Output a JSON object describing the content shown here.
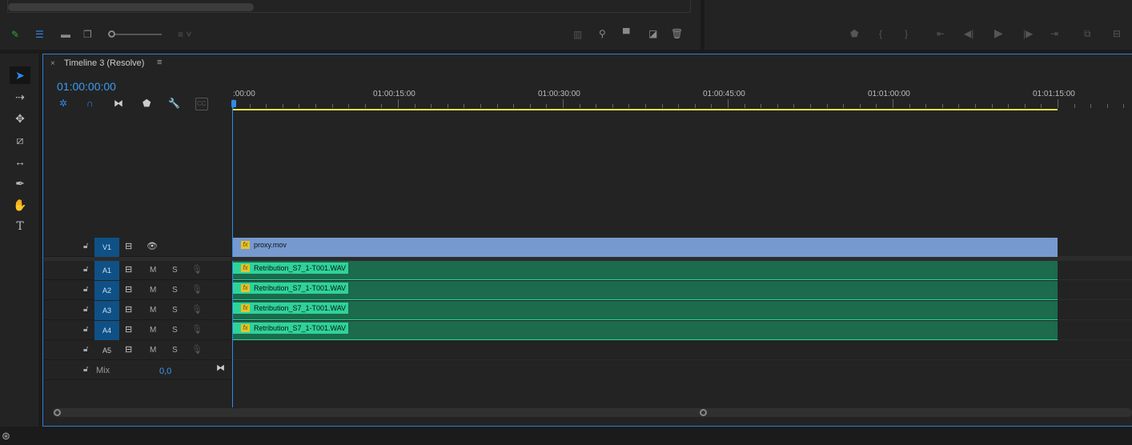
{
  "timeline": {
    "tab_title": "Timeline 3 (Resolve)",
    "timecode": "01:00:00:00",
    "ruler_labels": [
      ":00:00",
      "01:00:15:00",
      "01:00:30:00",
      "01:00:45:00",
      "01:01:00:00",
      "01:01:15:00"
    ],
    "in_out_end_seconds": 75,
    "tracks": [
      {
        "name": "V1",
        "targeted": true,
        "type": "video"
      },
      {
        "name": "A1",
        "targeted": true,
        "type": "audio"
      },
      {
        "name": "A2",
        "targeted": true,
        "type": "audio"
      },
      {
        "name": "A3",
        "targeted": true,
        "type": "audio"
      },
      {
        "name": "A4",
        "targeted": true,
        "type": "audio"
      },
      {
        "name": "A5",
        "targeted": false,
        "type": "audio"
      }
    ],
    "mute_label": "M",
    "solo_label": "S",
    "mix": {
      "label": "Mix",
      "value": "0,0"
    },
    "clips": [
      {
        "track": "V1",
        "name": "proxy.mov",
        "color": "#7699cf"
      },
      {
        "track": "A1",
        "name": "Retribution_S7_1-T001.WAV",
        "color": "#1b6b4c"
      },
      {
        "track": "A2",
        "name": "Retribution_S7_1-T001.WAV",
        "color": "#1b6b4c"
      },
      {
        "track": "A3",
        "name": "Retribution_S7_1-T001.WAV",
        "color": "#1b6b4c"
      },
      {
        "track": "A4",
        "name": "Retribution_S7_1-T001.WAV",
        "color": "#1b6b4c"
      }
    ],
    "fx_label": "fx"
  },
  "colors": {
    "accent": "#2d8ceb",
    "work_area": "#e8e04a",
    "video_clip": "#7699cf",
    "audio_clip": "#1b6b4c",
    "audio_label": "#2ed39a"
  }
}
